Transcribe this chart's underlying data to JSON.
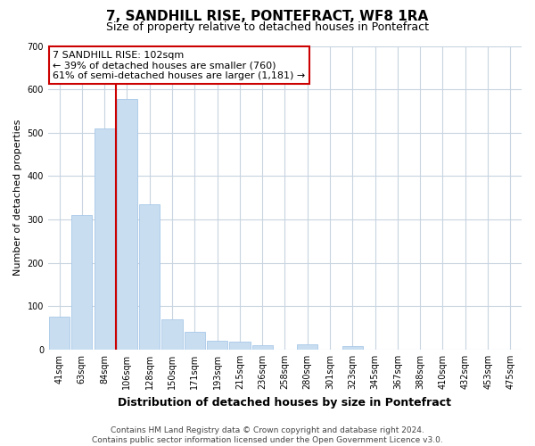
{
  "title": "7, SANDHILL RISE, PONTEFRACT, WF8 1RA",
  "subtitle": "Size of property relative to detached houses in Pontefract",
  "xlabel": "Distribution of detached houses by size in Pontefract",
  "ylabel": "Number of detached properties",
  "bar_labels": [
    "41sqm",
    "63sqm",
    "84sqm",
    "106sqm",
    "128sqm",
    "150sqm",
    "171sqm",
    "193sqm",
    "215sqm",
    "236sqm",
    "258sqm",
    "280sqm",
    "301sqm",
    "323sqm",
    "345sqm",
    "367sqm",
    "388sqm",
    "410sqm",
    "432sqm",
    "453sqm",
    "475sqm"
  ],
  "bar_values": [
    75,
    310,
    510,
    578,
    335,
    70,
    40,
    20,
    18,
    10,
    0,
    12,
    0,
    8,
    0,
    0,
    0,
    0,
    0,
    0,
    0
  ],
  "bar_color": "#c8ddf0",
  "bar_edge_color": "#a8c8e8",
  "ylim": [
    0,
    700
  ],
  "yticks": [
    0,
    100,
    200,
    300,
    400,
    500,
    600,
    700
  ],
  "property_line_x": 2.5,
  "property_line_color": "#cc0000",
  "annotation_text_line1": "7 SANDHILL RISE: 102sqm",
  "annotation_text_line2": "← 39% of detached houses are smaller (760)",
  "annotation_text_line3": "61% of semi-detached houses are larger (1,181) →",
  "annotation_box_color": "#ffffff",
  "annotation_box_edge": "#cc0000",
  "footer_line1": "Contains HM Land Registry data © Crown copyright and database right 2024.",
  "footer_line2": "Contains public sector information licensed under the Open Government Licence v3.0.",
  "background_color": "#ffffff",
  "grid_color": "#c8d4e0",
  "title_fontsize": 11,
  "subtitle_fontsize": 9,
  "xlabel_fontsize": 9,
  "ylabel_fontsize": 8,
  "tick_fontsize": 7,
  "annotation_fontsize": 8,
  "footer_fontsize": 6.5
}
